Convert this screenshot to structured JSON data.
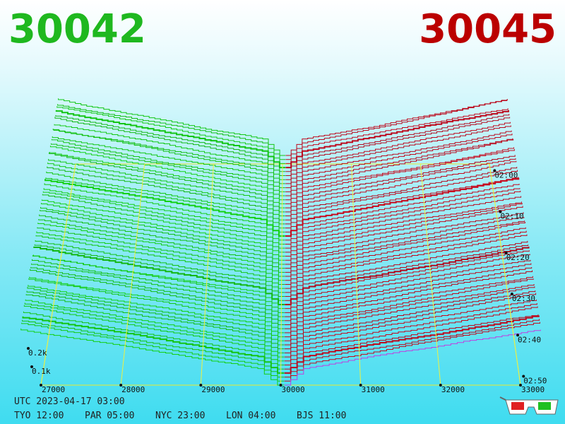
{
  "header": {
    "bid": "30042",
    "ask": "30045"
  },
  "axes": {
    "price_ticks": [
      27000,
      28000,
      29000,
      30000,
      31000,
      32000,
      33000
    ],
    "depth_ticks": [
      {
        "value": 100,
        "label": "0.1k"
      },
      {
        "value": 200,
        "label": "0.2k"
      }
    ],
    "time_ticks": [
      "02:00",
      "02:10",
      "02:20",
      "02:30",
      "02:40",
      "02:50"
    ]
  },
  "footer": {
    "utc": "UTC 2023-04-17 03:00",
    "clocks": [
      "TYO 12:00",
      "PAR 05:00",
      "NYC 23:00",
      "LON 04:00",
      "BJS 11:00"
    ]
  }
}
